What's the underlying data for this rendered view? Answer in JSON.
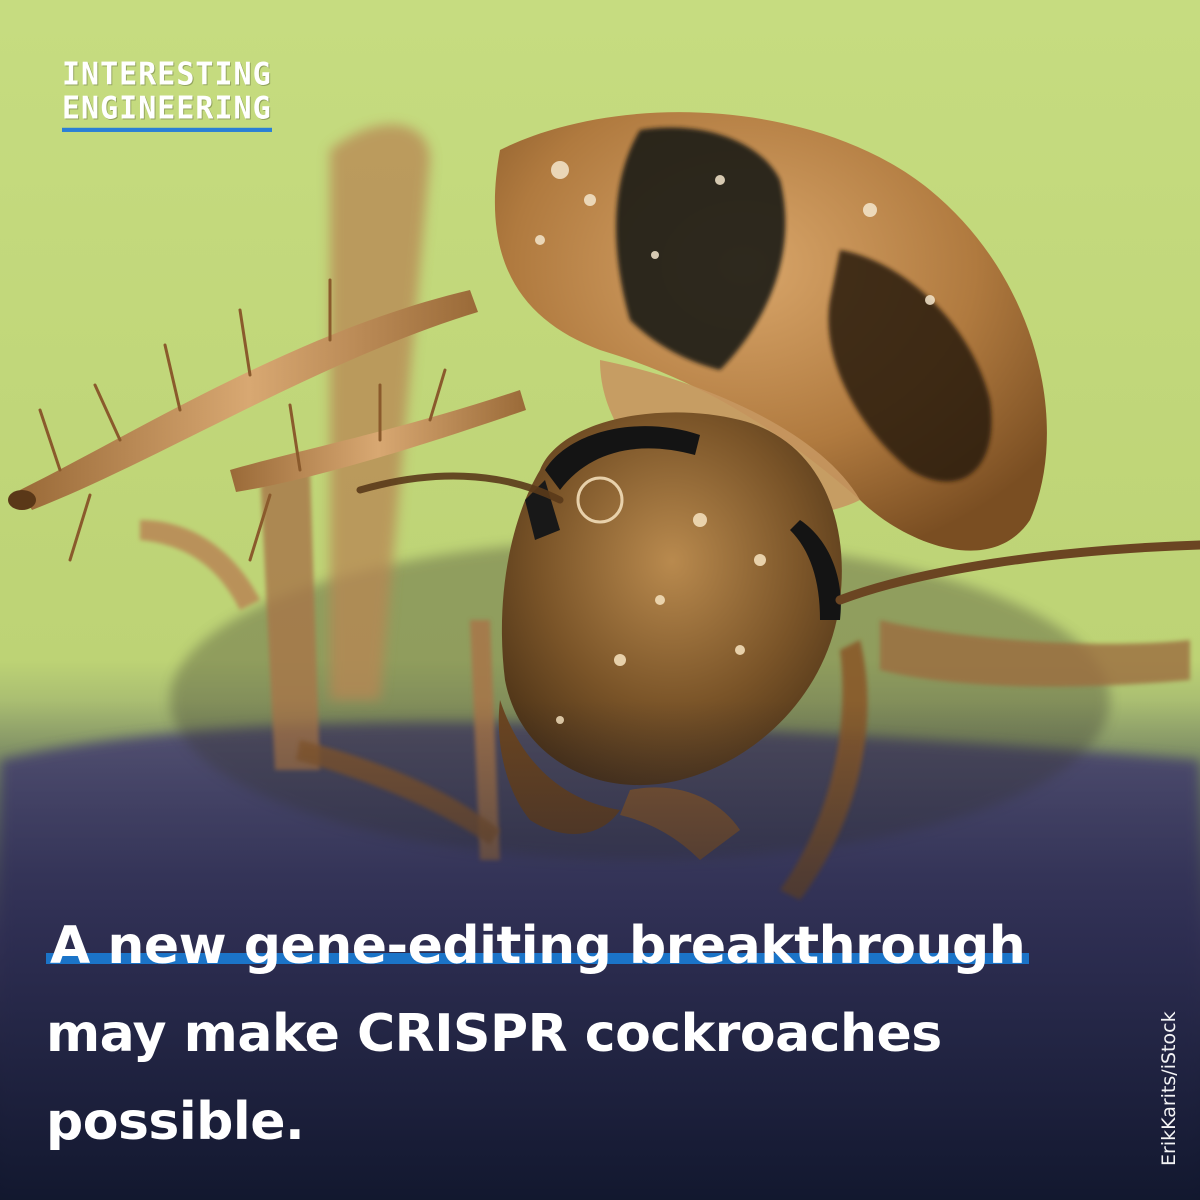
{
  "brand": {
    "line1": "INTERESTING",
    "line2": "ENGINEERING",
    "accent_color": "#1b74c8"
  },
  "headline": {
    "line1": "A new gene-editing breakthrough",
    "line2": "may make CRISPR cockroaches",
    "line3": "possible."
  },
  "photo_credit": "ErikKarits/iStock",
  "colors": {
    "background_green": "#c2d77b",
    "bottom_overlay": "#141a33"
  }
}
